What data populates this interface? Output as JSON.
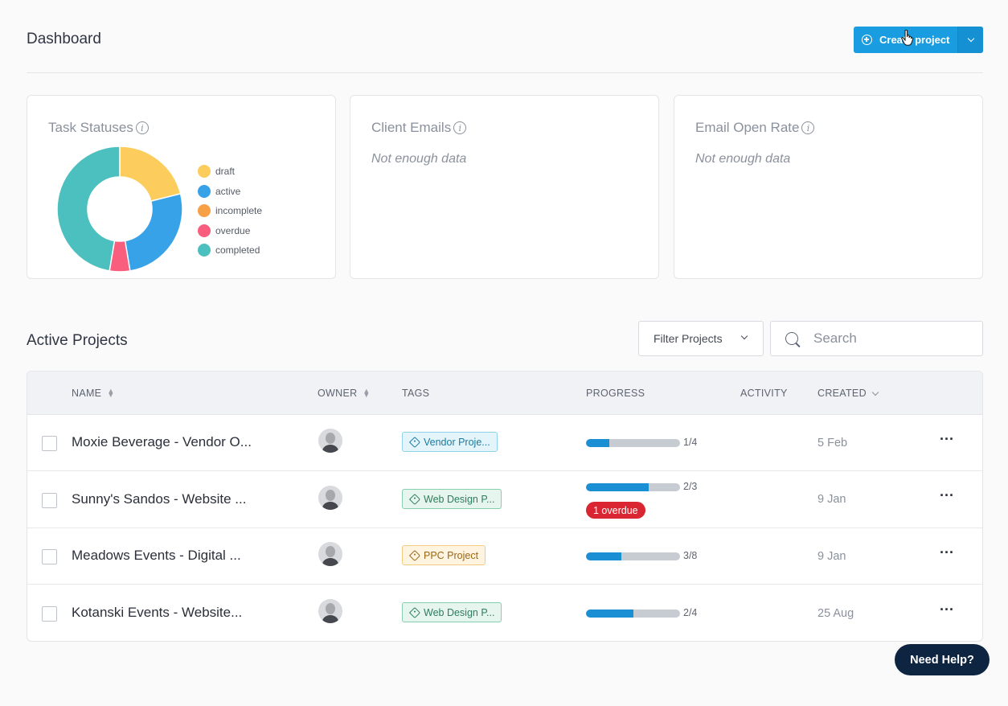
{
  "header": {
    "title": "Dashboard",
    "create_label": "Create project"
  },
  "cards": [
    {
      "title": "Task Statuses"
    },
    {
      "title": "Client Emails",
      "empty_text": "Not enough data"
    },
    {
      "title": "Email Open Rate",
      "empty_text": "Not enough data"
    }
  ],
  "chart_data": {
    "type": "pie",
    "title": "Task Statuses",
    "donut": true,
    "labels": [
      "draft",
      "active",
      "incomplete",
      "overdue",
      "completed"
    ],
    "values": [
      4,
      5,
      0,
      1,
      9
    ],
    "colors": [
      "#fccd5c",
      "#37a2e8",
      "#f7a046",
      "#f95e7e",
      "#4cbfbf"
    ]
  },
  "projects_section": {
    "title": "Active Projects",
    "filter_label": "Filter Projects",
    "search_placeholder": "Search"
  },
  "table": {
    "columns": [
      "NAME",
      "OWNER",
      "TAGS",
      "PROGRESS",
      "ACTIVITY",
      "CREATED"
    ],
    "rows": [
      {
        "name": "Moxie Beverage - Vendor O...",
        "tag": "Vendor Proje...",
        "tag_color": "blue",
        "progress_done": 1,
        "progress_total": 4,
        "progress_label": "1/4",
        "overdue": "",
        "created": "5 Feb"
      },
      {
        "name": "Sunny's Sandos - Website ...",
        "tag": "Web Design P...",
        "tag_color": "green",
        "progress_done": 2,
        "progress_total": 3,
        "progress_label": "2/3",
        "overdue": "1 overdue",
        "created": "9 Jan"
      },
      {
        "name": "Meadows Events - Digital ...",
        "tag": "PPC Project",
        "tag_color": "orange",
        "progress_done": 3,
        "progress_total": 8,
        "progress_label": "3/8",
        "overdue": "",
        "created": "9 Jan"
      },
      {
        "name": "Kotanski Events - Website...",
        "tag": "Web Design P...",
        "tag_color": "green",
        "progress_done": 2,
        "progress_total": 4,
        "progress_label": "2/4",
        "overdue": "",
        "created": "25 Aug"
      }
    ],
    "more_label": "···"
  },
  "help": {
    "label": "Need Help?"
  }
}
